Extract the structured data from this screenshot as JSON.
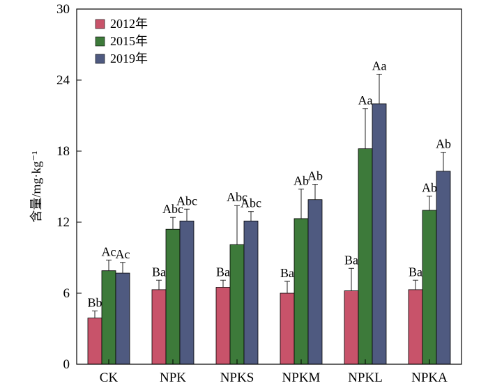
{
  "chart_data": {
    "type": "bar",
    "ylabel": "含量/mg·kg⁻¹",
    "ylim": [
      0,
      30
    ],
    "yticks": [
      0,
      6,
      12,
      18,
      24,
      30
    ],
    "grid": false,
    "legend_position": "top-left",
    "categories": [
      "CK",
      "NPK",
      "NPKS",
      "NPKM",
      "NPKL",
      "NPKA"
    ],
    "series": [
      {
        "name": "2012年",
        "color": "#c8536a",
        "values": [
          3.9,
          6.3,
          6.5,
          6.0,
          6.2,
          6.3
        ],
        "errors": [
          0.6,
          0.8,
          0.6,
          1.0,
          1.9,
          0.8
        ],
        "labels": [
          "Bb",
          "Ba",
          "Ba",
          "Ba",
          "Ba",
          "Ba"
        ]
      },
      {
        "name": "2015年",
        "color": "#3d7a3a",
        "values": [
          7.9,
          11.4,
          10.1,
          12.3,
          18.2,
          13.0
        ],
        "errors": [
          0.9,
          1.0,
          3.3,
          2.5,
          3.4,
          1.2
        ],
        "labels": [
          "Ac",
          "Abc",
          "Abc",
          "Ab",
          "Aa",
          "Ab"
        ]
      },
      {
        "name": "2019年",
        "color": "#4f5a80",
        "values": [
          7.7,
          12.1,
          12.1,
          13.9,
          22.0,
          16.3
        ],
        "errors": [
          0.9,
          1.0,
          0.8,
          1.3,
          2.5,
          1.6
        ],
        "labels": [
          "Ac",
          "Abc",
          "Abc",
          "Ab",
          "Aa",
          "Ab"
        ]
      }
    ]
  }
}
